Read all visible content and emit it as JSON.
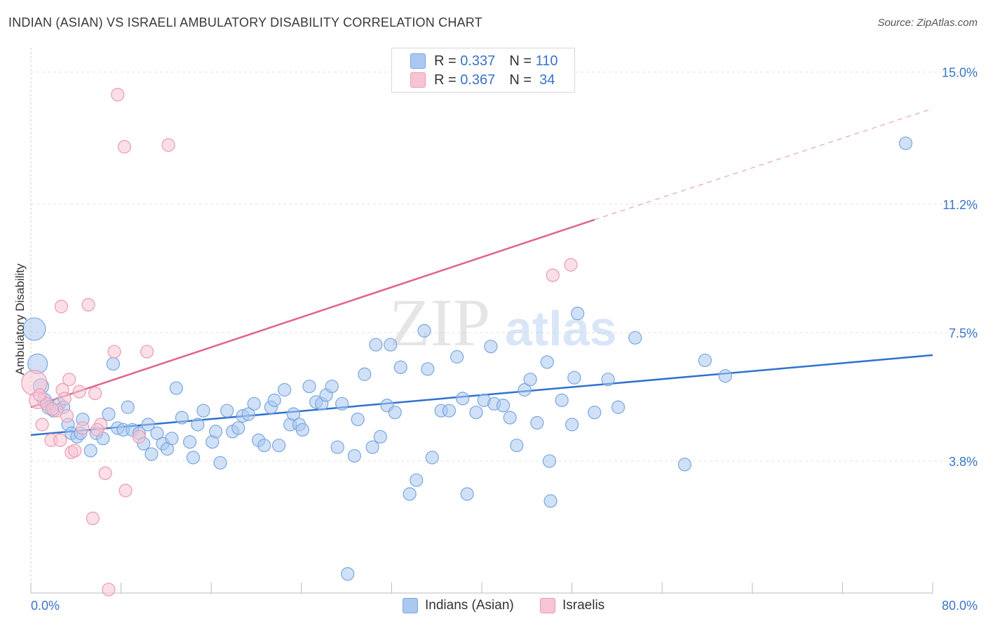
{
  "header": {
    "title": "INDIAN (ASIAN) VS ISRAELI AMBULATORY DISABILITY CORRELATION CHART",
    "source": "Source: ZipAtlas.com"
  },
  "watermark": {
    "zip": "ZIP",
    "atlas": "atlas"
  },
  "legend_top": {
    "rows": [
      {
        "r_label": "R =",
        "r_value": "0.337",
        "n_label": "N =",
        "n_value": "110",
        "color": "#aac8f0",
        "border": "#7aa6e0"
      },
      {
        "r_label": "R =",
        "r_value": "0.367",
        "n_label": "N =",
        "n_value": "34",
        "color": "#f8c4d4",
        "border": "#eb9ab4"
      }
    ]
  },
  "bottom_legend": {
    "items": [
      {
        "label": "Indians (Asian)",
        "color": "#aac8f0",
        "border": "#7aa6e0"
      },
      {
        "label": "Israelis",
        "color": "#f8c4d4",
        "border": "#eb9ab4"
      }
    ]
  },
  "chart_data": {
    "type": "scatter",
    "title": "INDIAN (ASIAN) VS ISRAELI AMBULATORY DISABILITY CORRELATION CHART",
    "xlabel": "",
    "ylabel": "Ambulatory Disability",
    "xlim": [
      0,
      80
    ],
    "ylim": [
      0,
      15.5
    ],
    "x_tick_labels": [
      "0.0%",
      "80.0%"
    ],
    "y_ticks": [
      3.8,
      7.5,
      11.2,
      15.0
    ],
    "y_tick_labels": [
      "3.8%",
      "7.5%",
      "11.2%",
      "15.0%"
    ],
    "grid": true,
    "legend_position": "top-center",
    "series": [
      {
        "name": "Indians (Asian)",
        "color": "#7aa6e0",
        "fill": "#aac8f0",
        "trend_color": "#2f72cf",
        "r": 0.337,
        "n": 110,
        "trend": {
          "x0": 0,
          "y0": 4.55,
          "x1": 80,
          "y1": 6.85
        },
        "points": [
          [
            0.3,
            7.6,
            16
          ],
          [
            0.6,
            6.6,
            14
          ],
          [
            0.9,
            5.95,
            11
          ],
          [
            1.2,
            5.55,
            10
          ],
          [
            1.6,
            5.35,
            10
          ],
          [
            2.0,
            5.25,
            9
          ],
          [
            2.5,
            5.45,
            9
          ],
          [
            2.9,
            5.35,
            9
          ],
          [
            3.3,
            4.85,
            9
          ],
          [
            3.6,
            4.6,
            9
          ],
          [
            4.1,
            4.5,
            9
          ],
          [
            4.4,
            4.6,
            9
          ],
          [
            4.6,
            5.0,
            9
          ],
          [
            5.3,
            4.1,
            9
          ],
          [
            5.8,
            4.6,
            9
          ],
          [
            6.4,
            4.45,
            9
          ],
          [
            6.9,
            5.15,
            9
          ],
          [
            7.3,
            6.6,
            9
          ],
          [
            7.7,
            4.75,
            9
          ],
          [
            8.2,
            4.7,
            9
          ],
          [
            8.6,
            5.35,
            9
          ],
          [
            9.0,
            4.7,
            9
          ],
          [
            9.6,
            4.6,
            9
          ],
          [
            10.0,
            4.3,
            9
          ],
          [
            10.4,
            4.85,
            9
          ],
          [
            10.7,
            4.0,
            9
          ],
          [
            11.2,
            4.6,
            9
          ],
          [
            11.7,
            4.3,
            9
          ],
          [
            12.1,
            4.15,
            9
          ],
          [
            12.5,
            4.45,
            9
          ],
          [
            12.9,
            5.9,
            9
          ],
          [
            13.4,
            5.05,
            9
          ],
          [
            14.1,
            4.35,
            9
          ],
          [
            14.4,
            3.9,
            9
          ],
          [
            14.8,
            4.85,
            9
          ],
          [
            15.3,
            5.25,
            9
          ],
          [
            16.1,
            4.35,
            9
          ],
          [
            16.4,
            4.65,
            9
          ],
          [
            16.8,
            3.75,
            9
          ],
          [
            17.4,
            5.25,
            9
          ],
          [
            17.9,
            4.65,
            9
          ],
          [
            18.4,
            4.75,
            9
          ],
          [
            18.8,
            5.1,
            9
          ],
          [
            19.3,
            5.15,
            9
          ],
          [
            19.8,
            5.45,
            9
          ],
          [
            20.2,
            4.4,
            9
          ],
          [
            20.7,
            4.25,
            9
          ],
          [
            21.3,
            5.35,
            9
          ],
          [
            21.6,
            5.55,
            9
          ],
          [
            22.0,
            4.25,
            9
          ],
          [
            22.5,
            5.85,
            9
          ],
          [
            23.0,
            4.85,
            9
          ],
          [
            23.3,
            5.15,
            9
          ],
          [
            23.8,
            4.85,
            9
          ],
          [
            24.1,
            4.7,
            9
          ],
          [
            24.7,
            5.95,
            9
          ],
          [
            25.3,
            5.5,
            9
          ],
          [
            25.8,
            5.45,
            9
          ],
          [
            26.2,
            5.7,
            9
          ],
          [
            26.7,
            5.95,
            9
          ],
          [
            27.2,
            4.2,
            9
          ],
          [
            27.6,
            5.45,
            9
          ],
          [
            28.1,
            0.55,
            9
          ],
          [
            28.7,
            3.95,
            9
          ],
          [
            29.0,
            5.0,
            9
          ],
          [
            29.6,
            6.3,
            9
          ],
          [
            30.3,
            4.2,
            9
          ],
          [
            30.6,
            7.15,
            9
          ],
          [
            31.0,
            4.5,
            9
          ],
          [
            31.6,
            5.4,
            9
          ],
          [
            31.9,
            7.15,
            9
          ],
          [
            32.3,
            5.2,
            9
          ],
          [
            32.8,
            6.5,
            9
          ],
          [
            33.6,
            2.85,
            9
          ],
          [
            34.2,
            3.25,
            9
          ],
          [
            34.9,
            7.55,
            9
          ],
          [
            35.2,
            6.45,
            9
          ],
          [
            35.6,
            3.9,
            9
          ],
          [
            36.4,
            5.25,
            9
          ],
          [
            37.1,
            5.25,
            9
          ],
          [
            37.8,
            6.8,
            9
          ],
          [
            38.3,
            5.6,
            9
          ],
          [
            38.7,
            2.85,
            9
          ],
          [
            39.5,
            5.2,
            9
          ],
          [
            40.2,
            5.55,
            9
          ],
          [
            40.8,
            7.1,
            9
          ],
          [
            41.1,
            5.45,
            9
          ],
          [
            41.9,
            5.4,
            9
          ],
          [
            42.5,
            5.05,
            9
          ],
          [
            43.1,
            4.25,
            9
          ],
          [
            43.8,
            5.85,
            9
          ],
          [
            44.3,
            6.15,
            9
          ],
          [
            44.9,
            4.9,
            9
          ],
          [
            45.8,
            6.65,
            9
          ],
          [
            46.0,
            3.8,
            9
          ],
          [
            46.1,
            2.65,
            9
          ],
          [
            47.1,
            5.55,
            9
          ],
          [
            48.0,
            4.85,
            9
          ],
          [
            48.2,
            6.2,
            9
          ],
          [
            48.5,
            8.05,
            9
          ],
          [
            50.0,
            5.2,
            9
          ],
          [
            51.2,
            6.15,
            9
          ],
          [
            52.1,
            5.35,
            9
          ],
          [
            53.6,
            7.35,
            9
          ],
          [
            58.0,
            3.7,
            9
          ],
          [
            59.8,
            6.7,
            9
          ],
          [
            61.6,
            6.25,
            9
          ],
          [
            77.6,
            12.95,
            9
          ]
        ]
      },
      {
        "name": "Israelis",
        "color": "#eb9ab4",
        "fill": "#f8c4d4",
        "trend_color": "#e0638e",
        "r": 0.367,
        "n": 34,
        "trend": {
          "x0": 0,
          "y0": 5.35,
          "x1": 50,
          "y1": 10.75
        },
        "trend_ext": {
          "x0": 50,
          "y0": 10.75,
          "x1": 80,
          "y1": 13.95
        },
        "points": [
          [
            0.3,
            6.05,
            18
          ],
          [
            0.6,
            5.55,
            12
          ],
          [
            1.0,
            4.85,
            9
          ],
          [
            1.4,
            5.45,
            9
          ],
          [
            1.8,
            4.4,
            9
          ],
          [
            2.3,
            5.25,
            9
          ],
          [
            2.6,
            4.4,
            9
          ],
          [
            2.8,
            5.85,
            9
          ],
          [
            3.2,
            5.1,
            9
          ],
          [
            3.4,
            6.15,
            9
          ],
          [
            3.6,
            4.05,
            9
          ],
          [
            3.9,
            4.1,
            9
          ],
          [
            4.3,
            5.8,
            9
          ],
          [
            4.6,
            4.75,
            9
          ],
          [
            5.1,
            8.3,
            9
          ],
          [
            5.5,
            2.15,
            9
          ],
          [
            5.7,
            5.75,
            9
          ],
          [
            6.2,
            4.85,
            9
          ],
          [
            6.6,
            3.45,
            9
          ],
          [
            6.9,
            0.1,
            9
          ],
          [
            7.4,
            6.95,
            9
          ],
          [
            7.7,
            14.35,
            9
          ],
          [
            8.3,
            12.85,
            9
          ],
          [
            8.4,
            2.95,
            9
          ],
          [
            9.6,
            4.5,
            9
          ],
          [
            10.3,
            6.95,
            9
          ],
          [
            12.2,
            12.9,
            9
          ],
          [
            46.3,
            9.15,
            9
          ],
          [
            47.9,
            9.45,
            9
          ],
          [
            2.7,
            8.25,
            9
          ],
          [
            1.9,
            5.3,
            9
          ],
          [
            0.8,
            5.7,
            9
          ],
          [
            3.0,
            5.6,
            9
          ],
          [
            5.9,
            4.7,
            9
          ]
        ]
      }
    ]
  }
}
